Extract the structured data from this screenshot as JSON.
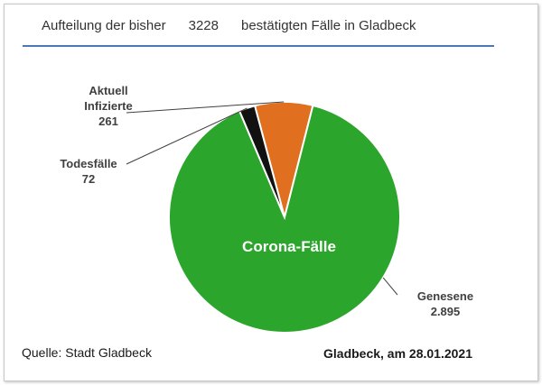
{
  "header": {
    "title_prefix": "Aufteilung der bisher",
    "total": "3228",
    "title_suffix": "bestätigten Fälle in Gladbeck"
  },
  "chart_data": {
    "type": "pie",
    "title": "Aufteilung der bisher 3228 bestätigten Fälle in Gladbeck",
    "center_label": "Corona-Fälle",
    "slices": [
      {
        "label_lines": [
          "Aktuell",
          "Infizierte"
        ],
        "value": 261,
        "value_label": "261",
        "color": "#e07020"
      },
      {
        "label_lines": [
          "Genesene"
        ],
        "value": 2895,
        "value_label": "2.895",
        "color": "#2ca52c"
      },
      {
        "label_lines": [
          "Todesfälle"
        ],
        "value": 72,
        "value_label": "72",
        "color": "#111111"
      }
    ]
  },
  "footer": {
    "source": "Quelle: Stadt Gladbeck",
    "date": "Gladbeck, am 28.01.2021"
  }
}
